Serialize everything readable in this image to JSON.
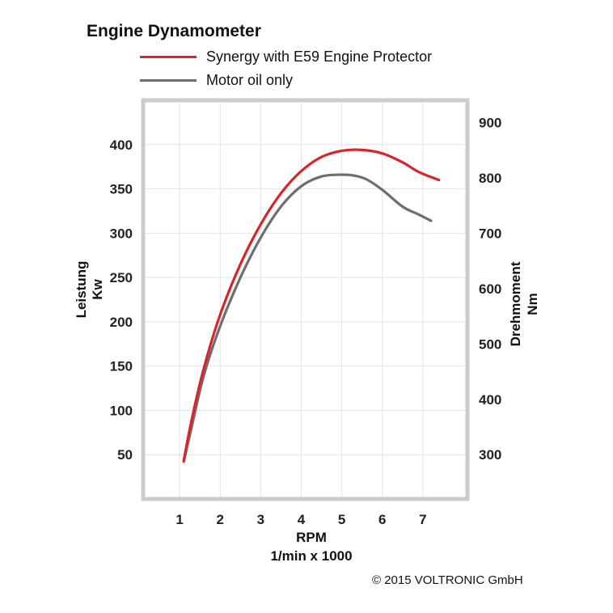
{
  "title": "Engine Dynamometer",
  "copyright": "© 2015 VOLTRONIC GmbH",
  "colors": {
    "synergy": "#d7252c",
    "oil": "#6e6e6e",
    "frame": "#cccccc",
    "grid": "#e4e4e4"
  },
  "chart_data": {
    "type": "line",
    "title": "Engine Dynamometer",
    "xlabel": "RPM",
    "xlabel_sub": "1/min x 1000",
    "ylabel": "Leistung",
    "ylabel_sub": "Kw",
    "y2label": "Drehmoment",
    "y2label_sub": "Nm",
    "xlim": [
      0.1,
      8.1
    ],
    "ylim": [
      0,
      450
    ],
    "y2lim": [
      220,
      940
    ],
    "x_ticks": [
      1,
      2,
      3,
      4,
      5,
      6,
      7
    ],
    "y_ticks": [
      50,
      100,
      150,
      200,
      250,
      300,
      350,
      400
    ],
    "y2_ticks": [
      300,
      400,
      500,
      600,
      700,
      800,
      900
    ],
    "grid": true,
    "legend_position": "top",
    "series": [
      {
        "name": "Synergy with E59 Engine Protector",
        "color": "#d7252c",
        "x": [
          1.1,
          1.3,
          1.6,
          2.0,
          2.5,
          3.0,
          3.5,
          4.0,
          4.5,
          5.0,
          5.5,
          6.0,
          6.5,
          6.9,
          7.4
        ],
        "y": [
          43,
          90,
          148,
          208,
          265,
          310,
          345,
          370,
          386,
          393,
          394,
          390,
          380,
          369,
          360
        ]
      },
      {
        "name": "Motor oil only",
        "color": "#6e6e6e",
        "x": [
          1.1,
          1.3,
          1.6,
          2.0,
          2.5,
          3.0,
          3.5,
          4.0,
          4.5,
          5.0,
          5.3,
          5.6,
          6.0,
          6.5,
          6.9,
          7.2
        ],
        "y": [
          42,
          82,
          140,
          195,
          250,
          295,
          330,
          353,
          364,
          366,
          365,
          361,
          349,
          330,
          321,
          314
        ]
      }
    ]
  }
}
